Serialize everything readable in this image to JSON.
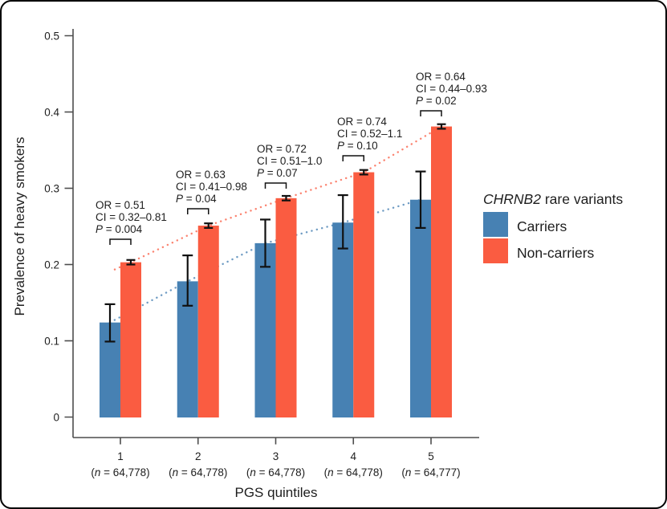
{
  "chart_data": {
    "type": "bar",
    "title": "",
    "xlabel": "PGS quintiles",
    "ylabel": "Prevalence of heavy smokers",
    "ylim": [
      0,
      0.5
    ],
    "yticks": [
      0,
      0.1,
      0.2,
      0.3,
      0.4,
      0.5
    ],
    "grid": false,
    "legend_position": "right",
    "categories": [
      "1",
      "2",
      "3",
      "4",
      "5"
    ],
    "n_labels": [
      "(n = 64,778)",
      "(n = 64,778)",
      "(n = 64,778)",
      "(n = 64,778)",
      "(n = 64,777)"
    ],
    "series": [
      {
        "name": "Carriers",
        "color": "#4781B3",
        "values": [
          0.124,
          0.178,
          0.228,
          0.255,
          0.285
        ],
        "ci_low": [
          0.099,
          0.146,
          0.197,
          0.221,
          0.248
        ],
        "ci_high": [
          0.148,
          0.212,
          0.259,
          0.291,
          0.322
        ],
        "trend_line": "dotted line through bar tops",
        "trend_color": "#6E9BC3"
      },
      {
        "name": "Non-carriers",
        "color": "#FA5C41",
        "values": [
          0.203,
          0.251,
          0.287,
          0.321,
          0.381
        ],
        "ci_low": [
          0.2,
          0.248,
          0.284,
          0.318,
          0.378
        ],
        "ci_high": [
          0.206,
          0.254,
          0.29,
          0.324,
          0.384
        ],
        "trend_line": "dotted line through bar tops",
        "trend_color": "#FB8370"
      }
    ],
    "annotations": [
      {
        "or": "OR = 0.51",
        "ci": "CI = 0.32–0.81",
        "p": "P = 0.004"
      },
      {
        "or": "OR = 0.63",
        "ci": "CI = 0.41–0.98",
        "p": "P = 0.04"
      },
      {
        "or": "OR = 0.72",
        "ci": "CI = 0.51–1.0",
        "p": "P = 0.07"
      },
      {
        "or": "OR = 0.74",
        "ci": "CI = 0.52–1.1",
        "p": "P = 0.10"
      },
      {
        "or": "OR = 0.64",
        "ci": "CI = 0.44–0.93",
        "p": "P = 0.02"
      }
    ]
  },
  "legend": {
    "title_gene": "CHRNB2",
    "title_rest": " rare variants"
  }
}
